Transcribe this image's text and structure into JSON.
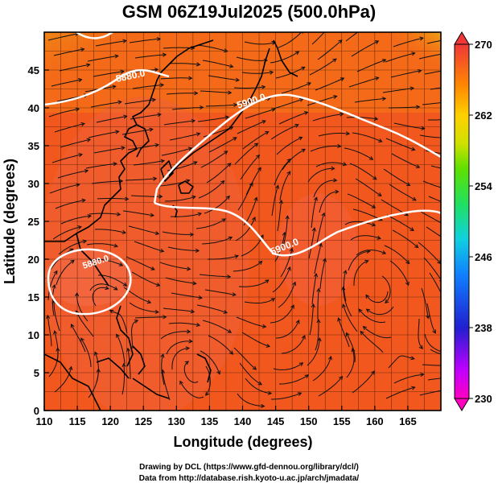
{
  "title": "GSM 06Z19Jul2025 (500.0hPa)",
  "xlabel": "Longitude (degrees)",
  "ylabel": "Latitude  (degrees)",
  "x_ticks": [
    "110",
    "115",
    "120",
    "125",
    "130",
    "135",
    "140",
    "145",
    "150",
    "155",
    "160",
    "165"
  ],
  "y_ticks": [
    "0",
    "5",
    "10",
    "15",
    "20",
    "25",
    "30",
    "35",
    "40",
    "45"
  ],
  "colorbar_ticks": [
    "270",
    "262",
    "254",
    "246",
    "238",
    "230"
  ],
  "contour_labels": [
    "5880.0",
    "5900.0",
    "5900.0",
    "5880.0"
  ],
  "credits": {
    "line1": "Drawing by DCL (https://www.gfd-dennou.org/library/dcl/)",
    "line2": "Data from http://database.rish.kyoto-u.ac.jp/arch/jmadata/"
  },
  "colors": {
    "shading_main": "#f2581e",
    "shading_hot": "#f0603a",
    "shading_warm": "#f57a14",
    "shading_cool": "#b8e020",
    "contour": "#ffffff",
    "coastline": "#000000"
  },
  "chart_data": {
    "type": "heatmap",
    "title": "GSM 06Z19Jul2025 (500.0hPa)",
    "xlabel": "Longitude (degrees)",
    "ylabel": "Latitude  (degrees)",
    "xlim": [
      110,
      170
    ],
    "ylim": [
      0,
      50
    ],
    "x_ticks": [
      110,
      115,
      120,
      125,
      130,
      135,
      140,
      145,
      150,
      155,
      160,
      165
    ],
    "y_ticks": [
      0,
      5,
      10,
      15,
      20,
      25,
      30,
      35,
      40,
      45
    ],
    "colorbar": {
      "min": 230,
      "max": 270,
      "ticks": [
        270,
        262,
        254,
        246,
        238,
        230
      ]
    },
    "contour_levels": [
      5880.0,
      5900.0
    ],
    "grid": true,
    "overlays": [
      "temperature shading",
      "geopotential height contours",
      "wind streamlines",
      "coastlines"
    ]
  }
}
